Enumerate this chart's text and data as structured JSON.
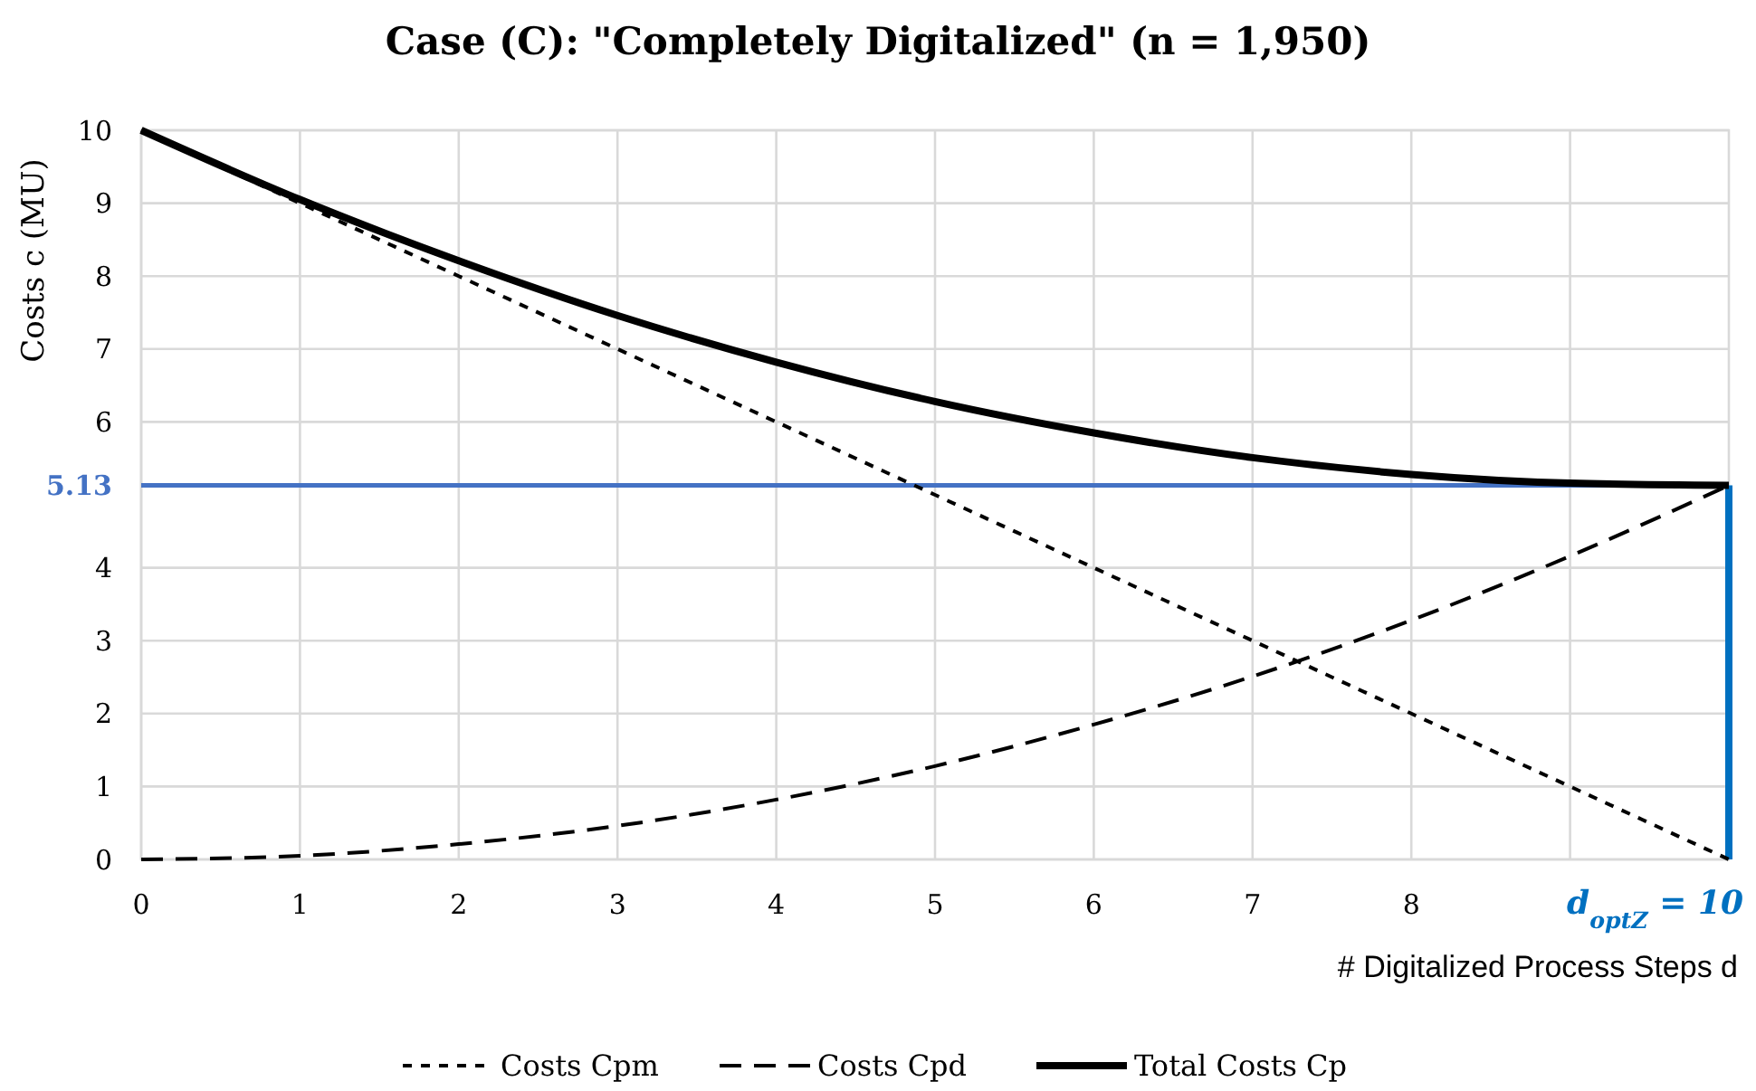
{
  "chart_data": {
    "type": "line",
    "title": "Case (C): \"Completely Digitalized\" (n = 1,950)",
    "xlabel": "# Digitalized Process Steps  d",
    "ylabel": "Costs  c  (MU)",
    "x": [
      0,
      1,
      2,
      3,
      4,
      5,
      6,
      7,
      8,
      9,
      10
    ],
    "series": [
      {
        "name": "Costs Cpm",
        "color": "#000000",
        "line_style": "dotted",
        "values": [
          10,
          9,
          8,
          7,
          6,
          5,
          4,
          3,
          2,
          1,
          0
        ]
      },
      {
        "name": "Costs Cpd",
        "color": "#000000",
        "line_style": "dashed",
        "values": [
          0,
          0.05,
          0.21,
          0.46,
          0.82,
          1.28,
          1.85,
          2.51,
          3.28,
          4.16,
          5.13
        ]
      },
      {
        "name": "Total Costs Cp",
        "color": "#000000",
        "line_style": "solid",
        "values": [
          10,
          9.05,
          8.21,
          7.46,
          6.82,
          6.28,
          5.85,
          5.51,
          5.28,
          5.16,
          5.13
        ]
      }
    ],
    "xlim": [
      0,
      10
    ],
    "xticks": [
      0,
      1,
      2,
      3,
      4,
      5,
      6,
      7,
      8,
      {
        "value": 9,
        "label": null
      }
    ],
    "ylim": [
      0,
      10
    ],
    "yticks": [
      0,
      1,
      2,
      3,
      4,
      6,
      7,
      8,
      9,
      10
    ],
    "ref_lines": [
      {
        "axis": "y",
        "value": 5.13,
        "label": "5.13",
        "color": "#4472c4"
      },
      {
        "axis": "x",
        "value": 10,
        "label": "d$_{optZ}$ = 10",
        "color": "#0070c0"
      }
    ],
    "grid": true,
    "legend": "bottom",
    "marker": "none"
  }
}
